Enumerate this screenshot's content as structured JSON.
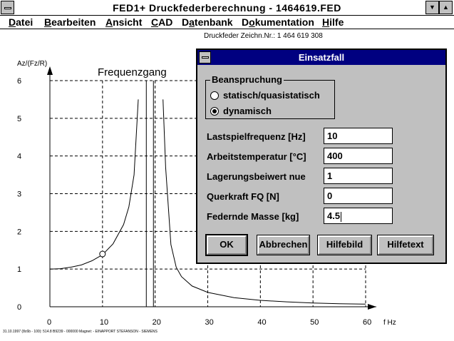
{
  "window": {
    "title": "FED1+   Druckfederberechnung  - 1464619.FED",
    "minimize_glyph": "▼",
    "maximize_glyph": "▲"
  },
  "menu": [
    {
      "label": "Datei",
      "mnemonic": "D",
      "rest": "atei"
    },
    {
      "label": "Bearbeiten",
      "mnemonic": "B",
      "rest": "earbeiten"
    },
    {
      "label": "Ansicht",
      "mnemonic": "A",
      "rest": "nsicht"
    },
    {
      "label": "CAD",
      "mnemonic": "C",
      "rest": "AD"
    },
    {
      "label": "Datenbank",
      "mnemonic": "a",
      "pre": "D",
      "rest": "tenbank"
    },
    {
      "label": "Dokumentation",
      "mnemonic": "o",
      "pre": "D",
      "rest": "kumentation"
    },
    {
      "label": "Hilfe",
      "mnemonic": "H",
      "rest": "ilfe"
    }
  ],
  "header": {
    "text": "Druckfeder  Zeichn.Nr.: 1 464 619 308"
  },
  "chart_data": {
    "type": "line",
    "title": "Frequenzgang",
    "xlabel": "f Hz",
    "ylabel": "Az/(Fz/R)",
    "xlim": [
      0,
      60
    ],
    "ylim": [
      0,
      6
    ],
    "xticks": [
      "0",
      "10",
      "20",
      "30",
      "40",
      "50",
      "60"
    ],
    "yticks": [
      "0",
      "1",
      "2",
      "3",
      "4",
      "5",
      "6"
    ],
    "resonance_hz": 19,
    "operating_point": {
      "x": 10,
      "y": 1.4
    },
    "series": [
      {
        "x": [
          0,
          2,
          4,
          6,
          8,
          10,
          12,
          14,
          15,
          16,
          16.8
        ],
        "y": [
          1.0,
          1.01,
          1.05,
          1.11,
          1.22,
          1.38,
          1.67,
          2.18,
          2.65,
          3.5,
          5.5
        ]
      },
      {
        "x": [
          21.5,
          22,
          23,
          24,
          25,
          27,
          30,
          35,
          40,
          45,
          50,
          55,
          60
        ],
        "y": [
          5.5,
          3.7,
          1.65,
          1.05,
          0.8,
          0.55,
          0.38,
          0.24,
          0.17,
          0.13,
          0.1,
          0.08,
          0.07
        ]
      }
    ]
  },
  "status_line": "31.10.1997 (8c6b - 100): 514.8 B9239 - 000000 Magnet: - EINAPPORT STEFANSON - SIEMENS",
  "dialog": {
    "title": "Einsatzfall",
    "group": {
      "label": "Beanspruchung",
      "options": [
        {
          "label": "statisch/quasistatisch",
          "selected": false
        },
        {
          "label": "dynamisch",
          "selected": true
        }
      ]
    },
    "fields": [
      {
        "label": "Lastspielfrequenz [Hz]",
        "value": "10"
      },
      {
        "label": "Arbeitstemperatur [°C]",
        "value": "400"
      },
      {
        "label": "Lagerungsbeiwert nue",
        "value": "1"
      },
      {
        "label": "Querkraft FQ [N]",
        "value": "0"
      },
      {
        "label": "Federnde Masse [kg]",
        "value": "4.5"
      }
    ],
    "buttons": [
      {
        "label": "OK"
      },
      {
        "label": "Abbrechen"
      },
      {
        "label": "Hilfebild"
      },
      {
        "label": "Hilfetext"
      }
    ]
  }
}
